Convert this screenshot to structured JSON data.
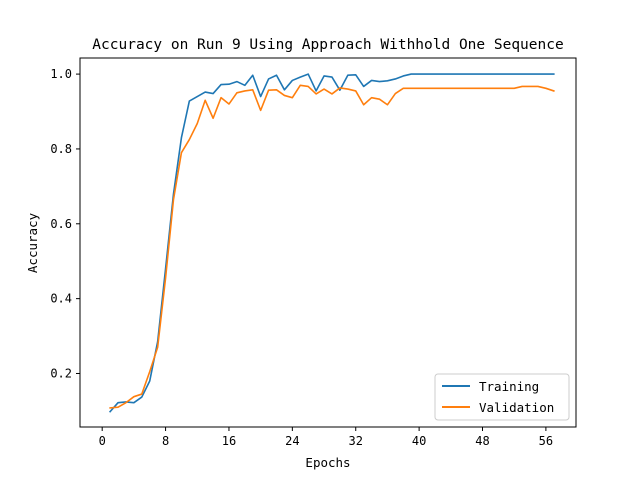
{
  "chart_data": {
    "type": "line",
    "title": "Accuracy on Run 9 Using Approach Withhold One Sequence",
    "xlabel": "Epochs",
    "ylabel": "Accuracy",
    "xlim": [
      -2.8,
      59.8
    ],
    "ylim": [
      0.057,
      1.043
    ],
    "xticks": [
      0,
      8,
      16,
      24,
      32,
      40,
      48,
      56
    ],
    "yticks": [
      0.2,
      0.4,
      0.6,
      0.8,
      1.0
    ],
    "ytick_labels": [
      "0.2",
      "0.4",
      "0.6",
      "0.8",
      "1.0"
    ],
    "legend_position": "lower-right",
    "grid": false,
    "series": [
      {
        "name": "Training",
        "color": "#1f77b4",
        "x": [
          1,
          2,
          3,
          4,
          5,
          6,
          7,
          8,
          9,
          10,
          11,
          12,
          13,
          14,
          15,
          16,
          17,
          18,
          19,
          20,
          21,
          22,
          23,
          24,
          25,
          26,
          27,
          28,
          29,
          30,
          31,
          32,
          33,
          34,
          35,
          36,
          37,
          38,
          39,
          40,
          41,
          42,
          43,
          44,
          45,
          46,
          47,
          48,
          49,
          50,
          51,
          52,
          53,
          54,
          55,
          56,
          57
        ],
        "values": [
          0.098,
          0.122,
          0.124,
          0.122,
          0.137,
          0.18,
          0.285,
          0.48,
          0.68,
          0.83,
          0.928,
          0.94,
          0.952,
          0.948,
          0.972,
          0.973,
          0.98,
          0.97,
          0.997,
          0.94,
          0.987,
          0.997,
          0.958,
          0.983,
          0.992,
          1.0,
          0.955,
          0.995,
          0.992,
          0.957,
          0.997,
          0.998,
          0.967,
          0.983,
          0.98,
          0.982,
          0.987,
          0.995,
          1.0,
          1.0,
          1.0,
          1.0,
          1.0,
          1.0,
          1.0,
          1.0,
          1.0,
          1.0,
          1.0,
          1.0,
          1.0,
          1.0,
          1.0,
          1.0,
          1.0,
          1.0,
          1.0
        ]
      },
      {
        "name": "Validation",
        "color": "#ff7f0e",
        "x": [
          1,
          2,
          3,
          4,
          5,
          6,
          7,
          8,
          9,
          10,
          11,
          12,
          13,
          14,
          15,
          16,
          17,
          18,
          19,
          20,
          21,
          22,
          23,
          24,
          25,
          26,
          27,
          28,
          29,
          30,
          31,
          32,
          33,
          34,
          35,
          36,
          37,
          38,
          39,
          40,
          41,
          42,
          43,
          44,
          45,
          46,
          47,
          48,
          49,
          50,
          51,
          52,
          53,
          54,
          55,
          56,
          57
        ],
        "values": [
          0.108,
          0.11,
          0.122,
          0.138,
          0.145,
          0.205,
          0.27,
          0.455,
          0.665,
          0.79,
          0.825,
          0.868,
          0.93,
          0.882,
          0.937,
          0.92,
          0.95,
          0.955,
          0.958,
          0.903,
          0.957,
          0.958,
          0.943,
          0.937,
          0.97,
          0.967,
          0.947,
          0.96,
          0.947,
          0.963,
          0.96,
          0.955,
          0.918,
          0.937,
          0.933,
          0.918,
          0.948,
          0.962,
          0.962,
          0.962,
          0.962,
          0.962,
          0.962,
          0.962,
          0.962,
          0.962,
          0.962,
          0.962,
          0.962,
          0.962,
          0.962,
          0.962,
          0.967,
          0.967,
          0.967,
          0.962,
          0.955
        ]
      }
    ]
  }
}
